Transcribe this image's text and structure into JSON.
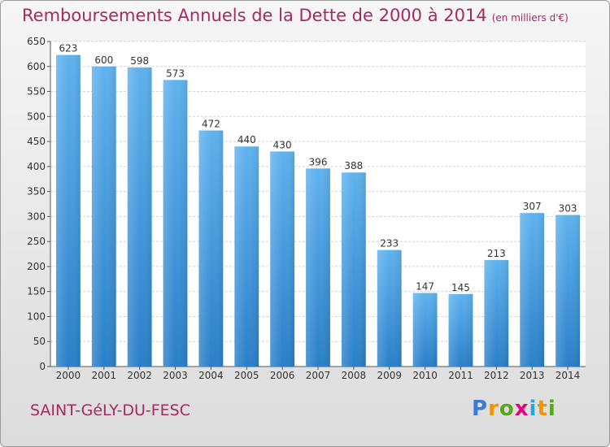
{
  "title": "Remboursements Annuels de la Dette de 2000 à 2014",
  "unit": "(en milliers d'€)",
  "commune": "SAINT-GéLY-DU-FESC",
  "brand_letters": [
    "P",
    "r",
    "o",
    "x",
    "i",
    "t",
    "i"
  ],
  "brand_colors": [
    "#3a7bd5",
    "#f29400",
    "#59a81c",
    "#e2007a",
    "#2aa6df",
    "#f29400",
    "#59a81c"
  ],
  "chart_data": {
    "type": "bar",
    "categories": [
      "2000",
      "2001",
      "2002",
      "2003",
      "2004",
      "2005",
      "2006",
      "2007",
      "2008",
      "2009",
      "2010",
      "2011",
      "2012",
      "2013",
      "2014"
    ],
    "values": [
      623,
      600,
      598,
      573,
      472,
      440,
      430,
      396,
      388,
      233,
      147,
      145,
      213,
      307,
      303
    ],
    "ylim": [
      0,
      650
    ],
    "yticks": [
      0,
      50,
      100,
      150,
      200,
      250,
      300,
      350,
      400,
      450,
      500,
      550,
      600,
      650
    ],
    "bar_color": "#4d9fdf",
    "grid": true
  }
}
